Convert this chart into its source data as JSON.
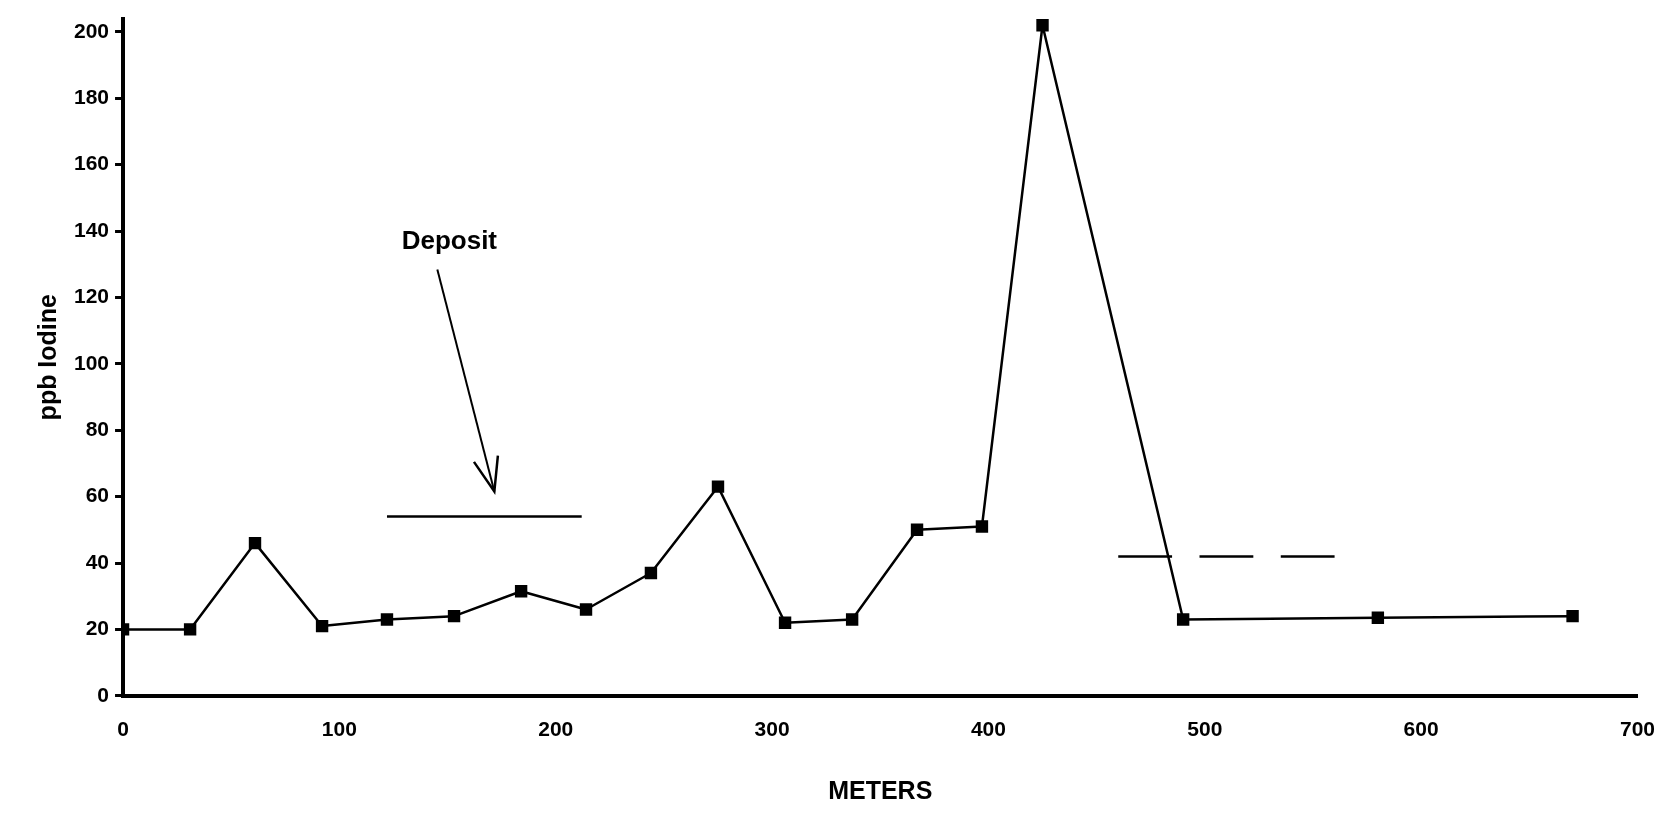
{
  "chart_data": {
    "type": "line",
    "xlabel": "METERS",
    "ylabel": "ppb Iodine",
    "xlim": [
      0,
      700
    ],
    "xticks": [
      0,
      100,
      200,
      300,
      400,
      500,
      600,
      700
    ],
    "ylim": [
      0,
      204
    ],
    "yticks": [
      0,
      20,
      40,
      60,
      80,
      100,
      120,
      140,
      160,
      180,
      200
    ],
    "grid": false,
    "legend": false,
    "annotations": [
      "Deposit"
    ],
    "series": [
      {
        "color": "#000000",
        "marker": "square",
        "line_style": "solid",
        "x": [
          0,
          31,
          61,
          92,
          122,
          153,
          184,
          214,
          244,
          275,
          306,
          337,
          367,
          397,
          425,
          490,
          580,
          670
        ],
        "values": [
          20,
          20,
          46,
          21,
          23,
          24,
          31.5,
          26,
          37,
          63,
          22,
          23,
          50,
          51,
          202,
          23,
          23.5,
          24
        ]
      },
      {
        "color": "#000000",
        "marker": "none",
        "line_style": "solid",
        "x": [
          122,
          212
        ],
        "values": [
          54,
          54
        ]
      },
      {
        "color": "#000000",
        "marker": "none",
        "line_style": "dashed",
        "x": [
          460,
          560
        ],
        "values": [
          42,
          42
        ]
      }
    ]
  }
}
